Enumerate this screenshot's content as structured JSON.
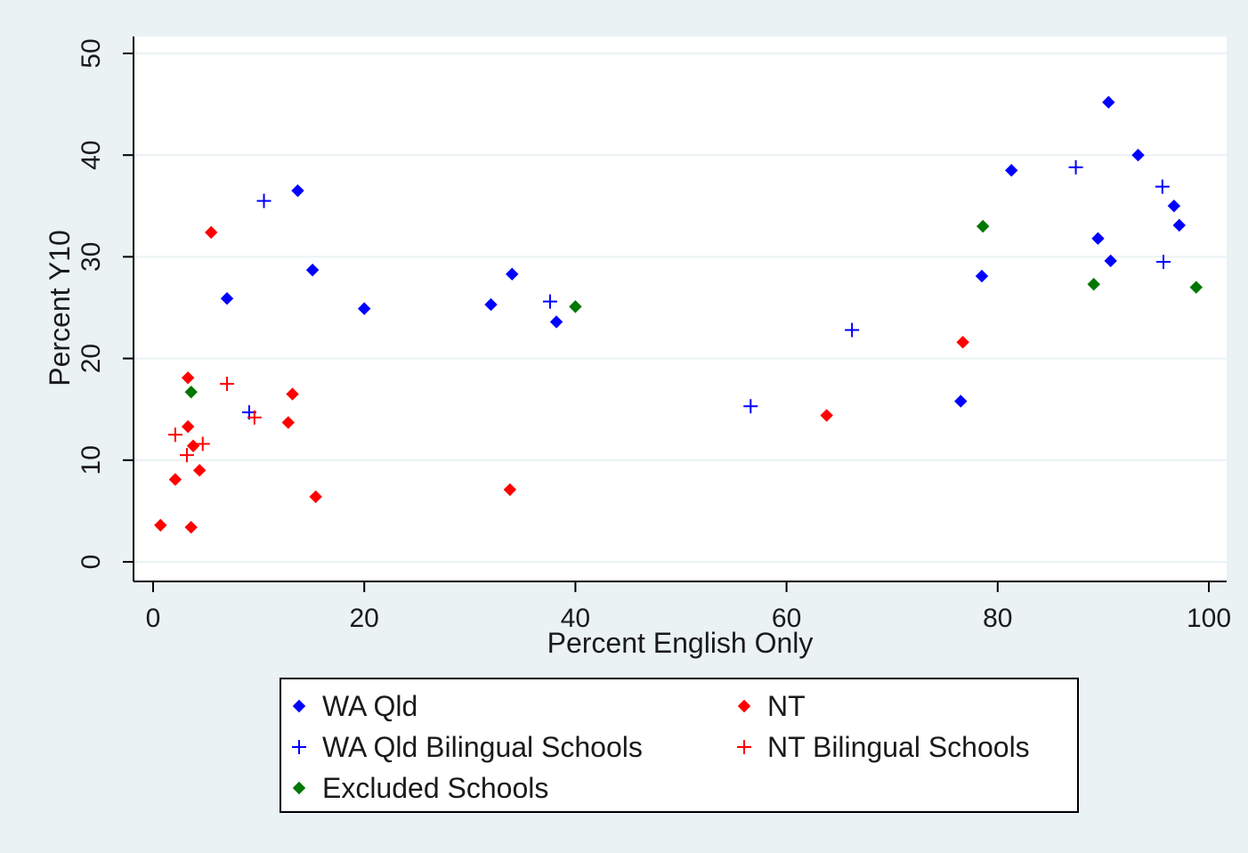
{
  "chart_data": {
    "type": "scatter",
    "xlabel": "Percent English Only",
    "ylabel": "Percent Y10",
    "xlim": [
      0,
      100
    ],
    "ylim": [
      0,
      50
    ],
    "xticks": [
      0,
      20,
      40,
      60,
      80,
      100
    ],
    "yticks": [
      0,
      10,
      20,
      30,
      40,
      50
    ],
    "grid": "horizontal",
    "legend_position": "bottom",
    "series": [
      {
        "name": "WA Qld",
        "color": "#0000ff",
        "marker": "diamond",
        "points": [
          [
            7,
            25.9
          ],
          [
            13.7,
            36.5
          ],
          [
            15.1,
            28.7
          ],
          [
            20,
            24.9
          ],
          [
            32,
            25.3
          ],
          [
            34,
            28.3
          ],
          [
            38.2,
            23.6
          ],
          [
            76.5,
            15.8
          ],
          [
            78.5,
            28.1
          ],
          [
            81.3,
            38.5
          ],
          [
            89.5,
            31.8
          ],
          [
            90.5,
            45.2
          ],
          [
            90.7,
            29.6
          ],
          [
            93.3,
            40.0
          ],
          [
            96.7,
            35.0
          ],
          [
            97.2,
            33.1
          ]
        ]
      },
      {
        "name": "NT",
        "color": "#ff0000",
        "marker": "diamond",
        "points": [
          [
            0.7,
            3.6
          ],
          [
            2.1,
            8.1
          ],
          [
            3.3,
            18.1
          ],
          [
            3.3,
            13.3
          ],
          [
            3.6,
            3.4
          ],
          [
            3.8,
            11.4
          ],
          [
            4.4,
            9.0
          ],
          [
            5.5,
            32.4
          ],
          [
            12.8,
            13.7
          ],
          [
            13.2,
            16.5
          ],
          [
            15.4,
            6.4
          ],
          [
            33.8,
            7.1
          ],
          [
            63.8,
            14.4
          ],
          [
            76.7,
            21.6
          ]
        ]
      },
      {
        "name": "WA Qld Bilingual Schools",
        "color": "#0000ff",
        "marker": "plus",
        "points": [
          [
            9.1,
            14.7
          ],
          [
            10.5,
            35.5
          ],
          [
            37.6,
            25.6
          ],
          [
            56.6,
            15.3
          ],
          [
            66.2,
            22.8
          ],
          [
            87.4,
            38.8
          ],
          [
            95.6,
            36.9
          ],
          [
            95.7,
            29.5
          ]
        ]
      },
      {
        "name": "NT Bilingual Schools",
        "color": "#ff0000",
        "marker": "plus",
        "points": [
          [
            2.1,
            12.5
          ],
          [
            3.2,
            10.5
          ],
          [
            4.7,
            11.6
          ],
          [
            7,
            17.5
          ],
          [
            9.6,
            14.2
          ]
        ]
      },
      {
        "name": "Excluded Schools",
        "color": "#007700",
        "marker": "diamond",
        "points": [
          [
            3.6,
            16.7
          ],
          [
            40,
            25.1
          ],
          [
            78.6,
            33.0
          ],
          [
            89.1,
            27.3
          ],
          [
            98.8,
            27.0
          ]
        ]
      }
    ]
  }
}
